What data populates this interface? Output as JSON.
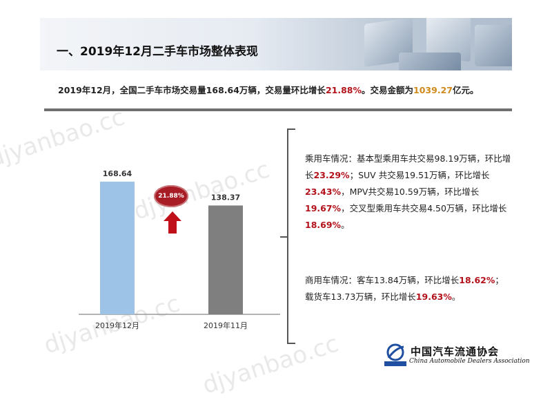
{
  "header": {
    "title": "一、2019年12月二手车市场整体表现"
  },
  "summary": {
    "part1": "2019年12月，全国二手车市场交易量168.64万辆，交易量环比增长",
    "growth": "21.88%",
    "part2": "。交易金额为",
    "amount": "1039.27",
    "part3": "亿元。"
  },
  "chart_data": {
    "type": "bar",
    "categories": [
      "2019年12月",
      "2019年11月"
    ],
    "values": [
      168.64,
      138.37
    ],
    "value_labels": [
      "168.64",
      "138.37"
    ],
    "colors": [
      "#9dc3e6",
      "#7f7f7f"
    ],
    "annotation": "21.88%",
    "ylim": [
      0,
      180
    ]
  },
  "passenger": {
    "t1": "乘用车情况：基本型乘用车共交易98.19万辆，环比增长",
    "v1": "23.29%",
    "t2": "；SUV 共交易19.51万辆，环比增长",
    "v2": "23.43%",
    "t3": "，MPV共交易10.59万辆，环比增长",
    "v3": "19.67%",
    "t4": "，交叉型乘用车共交易4.50万辆，环比增长",
    "v4": "18.69%",
    "t5": "。"
  },
  "commercial": {
    "t1": "商用车情况：客车13.84万辆，环比增长",
    "v1": "18.62%",
    "t2": "；载货车13.73万辆，环比增长",
    "v2": "19.63%",
    "t3": "。"
  },
  "watermark": "djyanbao.cc",
  "logo": {
    "cn": "中国汽车流通协会",
    "en": "China Automobile Dealers Association",
    "emblem": "CADA"
  }
}
